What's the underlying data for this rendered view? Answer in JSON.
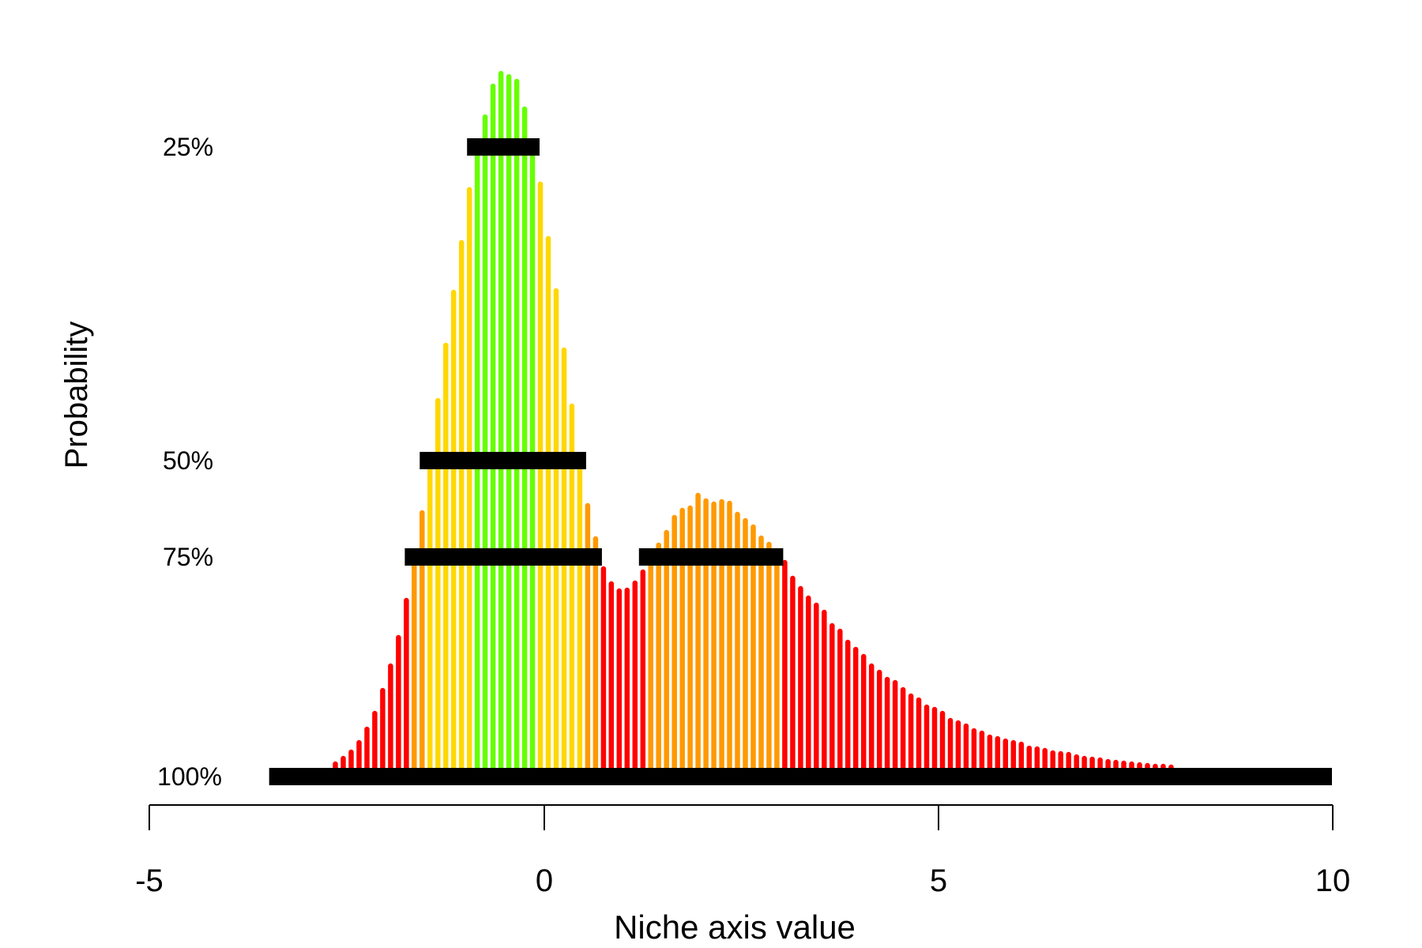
{
  "chart_data": {
    "type": "bar",
    "subtype": "lollipop-histogram with highest-density interval bars",
    "title": "",
    "xlabel": "Niche axis value",
    "ylabel": "Probability",
    "xlim": [
      -5,
      10
    ],
    "x_ticks": [
      -5,
      0,
      5,
      10
    ],
    "x_tick_labels": [
      "-5",
      "0",
      "5",
      "10"
    ],
    "y_axis_shown": false,
    "grid": false,
    "legend": null,
    "bin_start": -2.65,
    "bin_step": 0.1,
    "values": [
      0.0005,
      0.0012,
      0.002,
      0.0032,
      0.0049,
      0.0069,
      0.0098,
      0.0129,
      0.0165,
      0.0212,
      0.0267,
      0.0323,
      0.0389,
      0.0465,
      0.0535,
      0.0602,
      0.0665,
      0.0732,
      0.0786,
      0.0824,
      0.0863,
      0.0879,
      0.0875,
      0.0869,
      0.0834,
      0.0786,
      0.0739,
      0.067,
      0.0604,
      0.0529,
      0.0458,
      0.0389,
      0.0332,
      0.029,
      0.0252,
      0.0233,
      0.0224,
      0.0225,
      0.0234,
      0.0248,
      0.0267,
      0.0282,
      0.0298,
      0.0317,
      0.0326,
      0.0329,
      0.0345,
      0.0338,
      0.0334,
      0.0337,
      0.0335,
      0.0321,
      0.0313,
      0.0305,
      0.0291,
      0.0283,
      0.0272,
      0.026,
      0.024,
      0.0227,
      0.0215,
      0.0206,
      0.0197,
      0.018,
      0.0173,
      0.0159,
      0.015,
      0.0141,
      0.0129,
      0.0121,
      0.0112,
      0.0108,
      0.0099,
      0.0091,
      0.0086,
      0.0077,
      0.0074,
      0.0069,
      0.006,
      0.0057,
      0.0053,
      0.0047,
      0.0044,
      0.0039,
      0.0037,
      0.0034,
      0.0032,
      0.003,
      0.0025,
      0.0024,
      0.0022,
      0.0019,
      0.0018,
      0.0017,
      0.0014,
      0.0012,
      0.0011,
      0.001,
      0.0008,
      0.0007,
      0.0006,
      0.0005,
      0.0004,
      0.0003,
      0.0002,
      0.0002,
      0.0001
    ],
    "color_classes": [
      {
        "name": "within 25%",
        "color": "#66ff00",
        "from_index": 18,
        "to_index": 25
      },
      {
        "name": "within 50%",
        "color": "#ffd700",
        "ranges": [
          [
            12,
            17
          ],
          [
            26,
            31
          ]
        ]
      },
      {
        "name": "within 75%",
        "color": "#ff9900",
        "ranges": [
          [
            10,
            11
          ],
          [
            32,
            33
          ],
          [
            40,
            56
          ]
        ]
      },
      {
        "name": "within 100%",
        "color": "#ff0000",
        "ranges": [
          [
            0,
            9
          ],
          [
            34,
            39
          ],
          [
            57,
            106
          ]
        ]
      }
    ],
    "intervals": [
      {
        "label": "25%",
        "level": 0.0786,
        "segments": [
          [
            -0.98,
            -0.06
          ]
        ]
      },
      {
        "label": "50%",
        "level": 0.0389,
        "segments": [
          [
            -1.58,
            0.53
          ]
        ]
      },
      {
        "label": "75%",
        "level": 0.0267,
        "segments": [
          [
            -1.77,
            0.73
          ],
          [
            1.2,
            3.03
          ]
        ]
      },
      {
        "label": "100%",
        "level": -0.0011,
        "segments": [
          [
            -3.49,
            9.99
          ]
        ]
      }
    ]
  },
  "labels": {
    "xlabel": "Niche axis value",
    "ylabel": "Probability",
    "interval_25": "25%",
    "interval_50": "50%",
    "interval_75": "75%",
    "interval_100": "100%",
    "tick_m5": "-5",
    "tick_0": "0",
    "tick_5": "5",
    "tick_10": "10"
  },
  "colors": {
    "green": "#66ff00",
    "yellow": "#ffd700",
    "orange": "#ff9900",
    "red": "#ff0000",
    "interval_bar": "#000000"
  }
}
